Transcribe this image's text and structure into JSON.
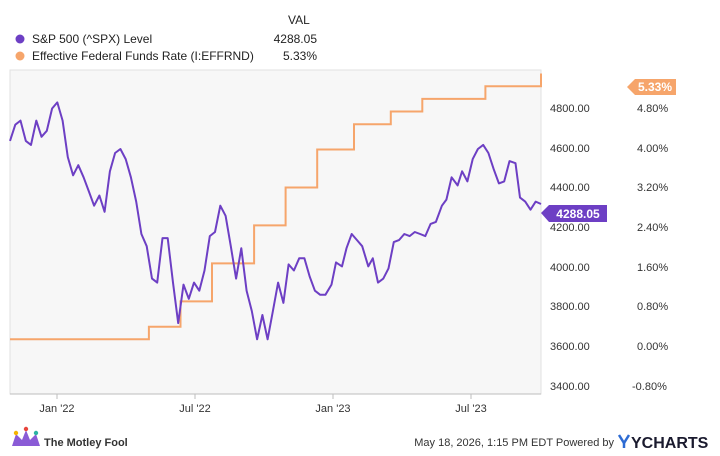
{
  "header": {
    "val_label": "VAL"
  },
  "legend": [
    {
      "name": "S&P 500 (^SPX) Level",
      "value": "4288.05",
      "color": "#6d3fc4"
    },
    {
      "name": "Effective Federal Funds Rate (I:EFFRND)",
      "value": "5.33%",
      "color": "#f6a56b"
    }
  ],
  "footer": {
    "left_brand": "The Motley Fool",
    "right_text": "May 18, 2026, 1:15 PM EDT Powered by",
    "right_brand": "YCHARTS"
  },
  "chart_data": {
    "type": "line",
    "x_ticks": [
      "Jan '22",
      "Jul '22",
      "Jan '23",
      "Jul '23"
    ],
    "y_left_ticks": [
      "3400.00",
      "3600.00",
      "3800.00",
      "4000.00",
      "4200.00",
      "4400.00",
      "4600.00",
      "4800.00"
    ],
    "y_right_ticks": [
      "-0.80%",
      "0.00%",
      "0.80%",
      "1.60%",
      "2.40%",
      "3.20%",
      "4.00%",
      "4.80%"
    ],
    "y_left_range": [
      3350,
      4950
    ],
    "y_right_range": [
      -1.0,
      5.4
    ],
    "x_range": [
      "2021-11-01",
      "2023-10-09"
    ],
    "end_labels": {
      "spx": "4288.05",
      "rate": "5.33%"
    },
    "series": [
      {
        "name": "S&P 500 (^SPX) Level",
        "axis": "left",
        "color": "#6d3fc4",
        "x": [
          "2021-11-01",
          "2021-11-08",
          "2021-11-15",
          "2021-11-22",
          "2021-11-29",
          "2021-12-06",
          "2021-12-13",
          "2021-12-20",
          "2021-12-27",
          "2022-01-03",
          "2022-01-10",
          "2022-01-17",
          "2022-01-24",
          "2022-01-31",
          "2022-02-07",
          "2022-02-14",
          "2022-02-21",
          "2022-02-28",
          "2022-03-07",
          "2022-03-14",
          "2022-03-21",
          "2022-03-28",
          "2022-04-04",
          "2022-04-11",
          "2022-04-18",
          "2022-04-25",
          "2022-05-02",
          "2022-05-09",
          "2022-05-16",
          "2022-05-23",
          "2022-05-30",
          "2022-06-06",
          "2022-06-13",
          "2022-06-20",
          "2022-06-27",
          "2022-07-04",
          "2022-07-11",
          "2022-07-18",
          "2022-07-25",
          "2022-08-01",
          "2022-08-08",
          "2022-08-15",
          "2022-08-22",
          "2022-08-29",
          "2022-09-05",
          "2022-09-12",
          "2022-09-19",
          "2022-09-26",
          "2022-10-03",
          "2022-10-10",
          "2022-10-17",
          "2022-10-24",
          "2022-10-31",
          "2022-11-07",
          "2022-11-14",
          "2022-11-21",
          "2022-11-28",
          "2022-12-05",
          "2022-12-12",
          "2022-12-19",
          "2022-12-26",
          "2023-01-03",
          "2023-01-09",
          "2023-01-17",
          "2023-01-23",
          "2023-01-30",
          "2023-02-06",
          "2023-02-13",
          "2023-02-21",
          "2023-02-27",
          "2023-03-06",
          "2023-03-13",
          "2023-03-20",
          "2023-03-27",
          "2023-04-03",
          "2023-04-10",
          "2023-04-17",
          "2023-04-24",
          "2023-05-01",
          "2023-05-08",
          "2023-05-15",
          "2023-05-22",
          "2023-05-30",
          "2023-06-05",
          "2023-06-12",
          "2023-06-20",
          "2023-06-26",
          "2023-07-03",
          "2023-07-10",
          "2023-07-17",
          "2023-07-24",
          "2023-07-31",
          "2023-08-07",
          "2023-08-14",
          "2023-08-21",
          "2023-08-28",
          "2023-09-05",
          "2023-09-11",
          "2023-09-18",
          "2023-09-25",
          "2023-10-02",
          "2023-10-09"
        ],
        "values": [
          4600,
          4680,
          4700,
          4600,
          4580,
          4700,
          4620,
          4650,
          4760,
          4790,
          4700,
          4520,
          4430,
          4480,
          4420,
          4350,
          4280,
          4330,
          4250,
          4450,
          4540,
          4560,
          4510,
          4420,
          4300,
          4140,
          4080,
          3920,
          3900,
          4120,
          4120,
          3900,
          3700,
          3890,
          3820,
          3900,
          3860,
          3960,
          4130,
          4150,
          4280,
          4230,
          4080,
          3920,
          4070,
          3860,
          3760,
          3620,
          3740,
          3620,
          3760,
          3900,
          3800,
          3990,
          3960,
          4020,
          4020,
          3930,
          3860,
          3840,
          3840,
          3890,
          4000,
          3980,
          4070,
          4140,
          4110,
          4080,
          3980,
          4020,
          3900,
          3920,
          3970,
          4100,
          4110,
          4140,
          4130,
          4150,
          4140,
          4130,
          4190,
          4200,
          4280,
          4310,
          4420,
          4380,
          4450,
          4400,
          4510,
          4560,
          4580,
          4540,
          4460,
          4390,
          4400,
          4500,
          4490,
          4320,
          4300,
          4260,
          4300,
          4288.05
        ]
      },
      {
        "name": "Effective Federal Funds Rate (I:EFFRND)",
        "axis": "right",
        "color": "#f6a56b",
        "step": true,
        "x": [
          "2021-11-01",
          "2022-03-17",
          "2022-05-05",
          "2022-06-16",
          "2022-07-28",
          "2022-09-22",
          "2022-11-03",
          "2022-12-15",
          "2023-02-02",
          "2023-03-23",
          "2023-05-04",
          "2023-07-27",
          "2023-10-09"
        ],
        "values": [
          0.08,
          0.08,
          0.33,
          0.83,
          1.58,
          2.33,
          3.08,
          3.83,
          4.33,
          4.58,
          4.83,
          5.08,
          5.33
        ]
      }
    ]
  }
}
